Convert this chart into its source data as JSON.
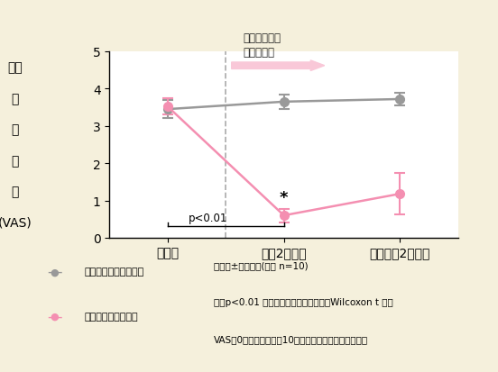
{
  "background_color": "#f5f0dc",
  "plot_bg_color": "#ffffff",
  "x_labels": [
    "使用前",
    "使用2週間後",
    "使用中止2週間後"
  ],
  "x_positions": [
    0,
    1,
    2
  ],
  "ylim": [
    0,
    5
  ],
  "yticks": [
    0,
    1,
    2,
    3,
    4,
    5
  ],
  "control_values": [
    3.45,
    3.65,
    3.72
  ],
  "control_errors": [
    0.25,
    0.2,
    0.18
  ],
  "treatment_values": [
    3.52,
    0.6,
    1.18
  ],
  "treatment_errors": [
    0.22,
    0.18,
    0.55
  ],
  "control_color": "#999999",
  "treatment_color": "#f48fb1",
  "arrow_fill_color": "#f9c8d8",
  "arrow_text": "使用群のみに\n保湿剤塗布",
  "p_text": "p<0.01",
  "star_text": "*",
  "legend1": "保湿剤を使用しない群",
  "legend2": "保湿剤を使用した群",
  "footnote1": "平均値±標準誤差(各群 n=10)",
  "footnote2": "＊：p<0.01 コントロール群に対して　Wilcoxon t 検定",
  "footnote3": "VASは0（痒みなし）～10（最大の痒み）で評価した。",
  "ylabel_lines": [
    "そう",
    "痒",
    "の",
    "程",
    "度",
    "(VAS)"
  ]
}
